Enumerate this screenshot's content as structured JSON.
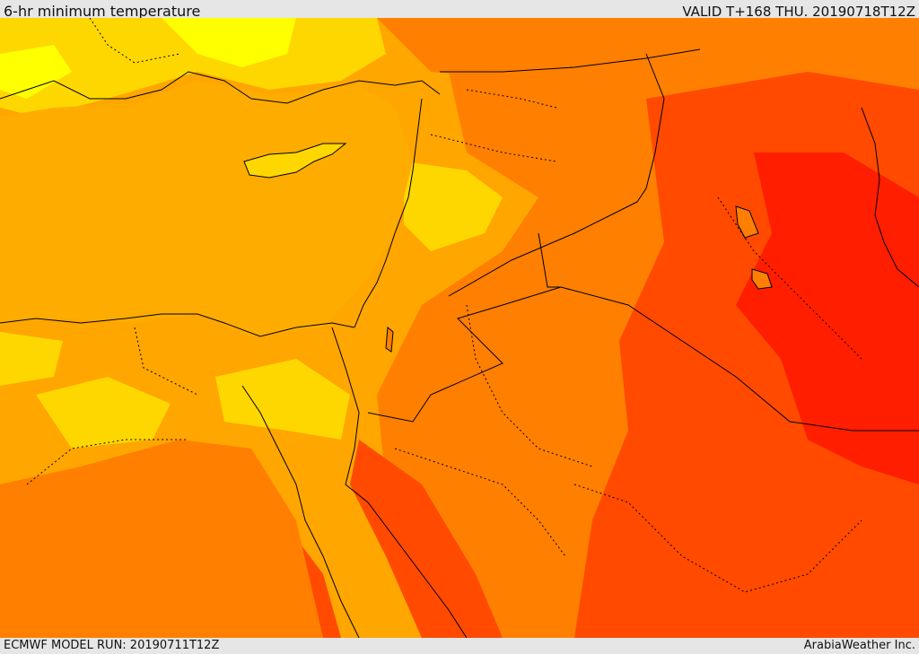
{
  "header": {
    "title": "6-hr minimum temperature",
    "valid": "VALID T+168 THU. 20190718T12Z"
  },
  "footer": {
    "model_run": "ECMWF MODEL RUN: 20190711T12Z",
    "credit": "ArabiaWeather Inc."
  },
  "colors": {
    "very_hot": "#ff1e00",
    "hot": "#ff4a00",
    "warm": "#ff7f00",
    "mild_warm": "#ffa600",
    "mild": "#ffd700",
    "cool": "#ffff00",
    "border": "#000000"
  }
}
